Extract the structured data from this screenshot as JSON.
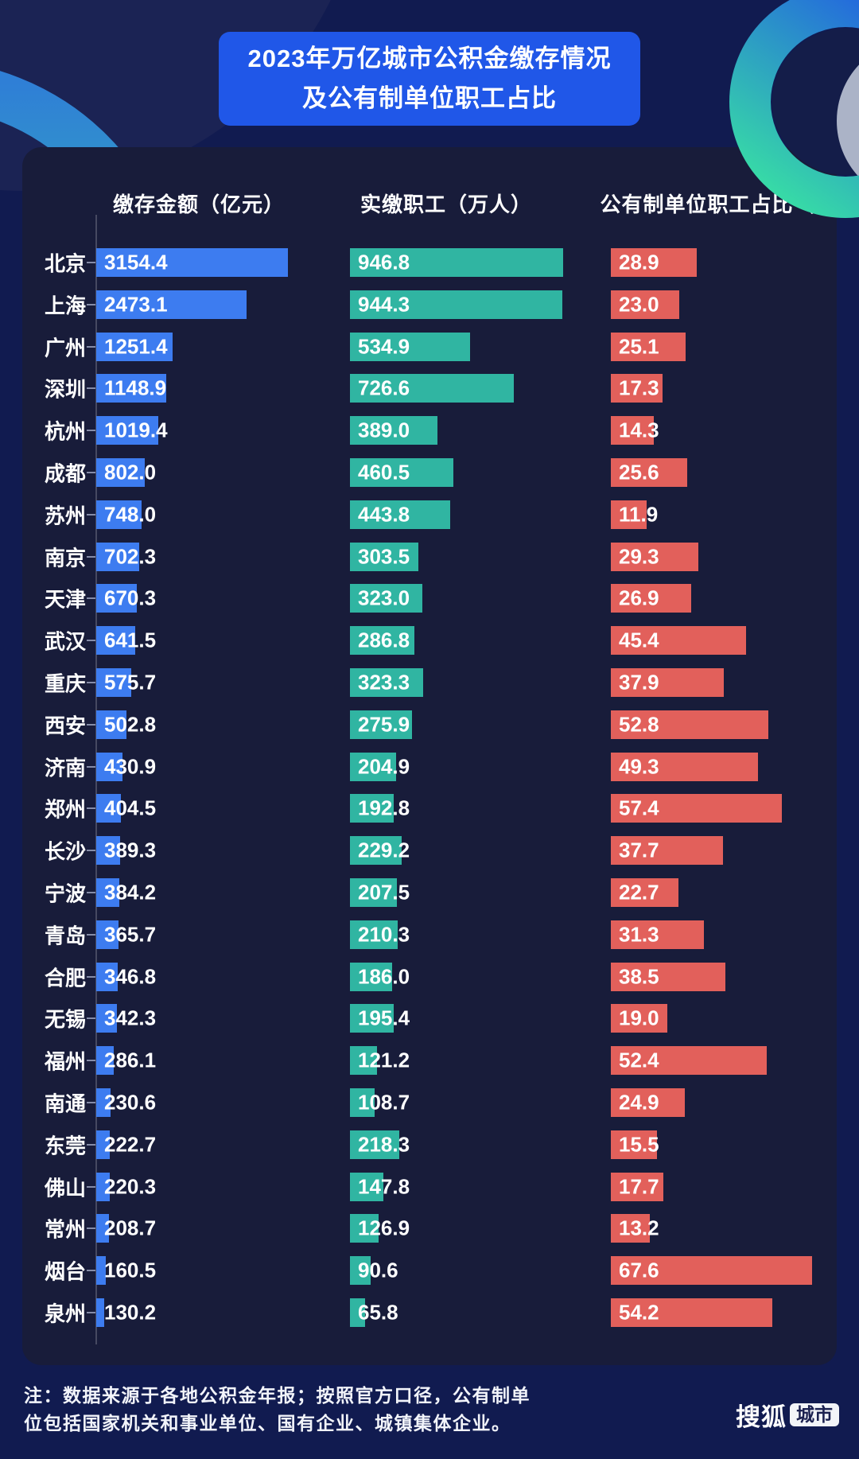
{
  "header": {
    "title_line1": "2023年万亿城市公积金缴存情况",
    "title_line2": "及公有制单位职工占比"
  },
  "chart_data": {
    "type": "bar",
    "orientation": "horizontal",
    "title": "2023年万亿城市公积金缴存情况及公有制单位职工占比",
    "categories": [
      "北京",
      "上海",
      "广州",
      "深圳",
      "杭州",
      "成都",
      "苏州",
      "南京",
      "天津",
      "武汉",
      "重庆",
      "西安",
      "济南",
      "郑州",
      "长沙",
      "宁波",
      "青岛",
      "合肥",
      "无锡",
      "福州",
      "南通",
      "东莞",
      "佛山",
      "常州",
      "烟台",
      "泉州"
    ],
    "series": [
      {
        "name": "缴存金额（亿元）",
        "color": "#3d7cf0",
        "values": [
          3154.4,
          2473.1,
          1251.4,
          1148.9,
          1019.4,
          802.0,
          748.0,
          702.3,
          670.3,
          641.5,
          575.7,
          502.8,
          430.9,
          404.5,
          389.3,
          384.2,
          365.7,
          346.8,
          342.3,
          286.1,
          230.6,
          222.7,
          220.3,
          208.7,
          160.5,
          130.2
        ]
      },
      {
        "name": "实缴职工（万人）",
        "color": "#30b5a2",
        "values": [
          946.8,
          944.3,
          534.9,
          726.6,
          389.0,
          460.5,
          443.8,
          303.5,
          323.0,
          286.8,
          323.3,
          275.9,
          204.9,
          192.8,
          229.2,
          207.5,
          210.3,
          186.0,
          195.4,
          121.2,
          108.7,
          218.3,
          147.8,
          126.9,
          90.6,
          65.8
        ]
      },
      {
        "name": "公有制单位职工占比（%）",
        "color": "#e2605b",
        "values": [
          28.9,
          23.0,
          25.1,
          17.3,
          14.3,
          25.6,
          11.9,
          29.3,
          26.9,
          45.4,
          37.9,
          52.8,
          49.3,
          57.4,
          37.7,
          22.7,
          31.3,
          38.5,
          19.0,
          52.4,
          24.9,
          15.5,
          17.7,
          13.2,
          67.6,
          54.2
        ]
      }
    ],
    "value_labels": "one decimal, at bar start",
    "legend_position": "column headers",
    "note": "注：数据来源于各地公积金年报；按照官方口径，公有制单位包括国家机关和事业单位、国有企业、城镇集体企业。"
  },
  "footer": {
    "note_line1": "注：数据来源于各地公积金年报；按照官方口径，公有制单",
    "note_line2": "位包括国家机关和事业单位、国有企业、城镇集体企业。"
  },
  "logo": {
    "text": "搜狐",
    "badge": "城市"
  },
  "colors": {
    "background": "#111b50",
    "panel": "#181c3a",
    "title_box": "#2057e8",
    "bar_blue": "#3d7cf0",
    "bar_teal": "#30b5a2",
    "bar_red": "#e2605b",
    "text": "#ffffff"
  }
}
